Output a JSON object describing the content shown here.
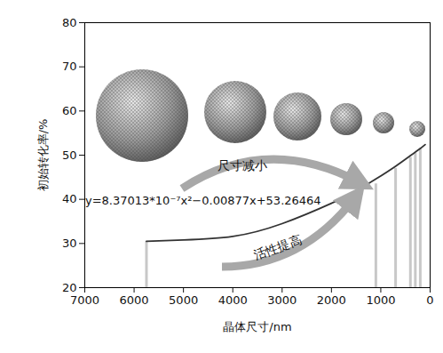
{
  "chart_data": {
    "type": "line",
    "xlabel": "晶体尺寸/nm",
    "ylabel": "初始转化率/%",
    "xlim": [
      7000,
      0
    ],
    "xticks": [
      7000,
      6000,
      5000,
      4000,
      3000,
      2000,
      1000,
      0
    ],
    "ylim": [
      20,
      80
    ],
    "yticks": [
      20,
      30,
      40,
      50,
      60,
      70,
      80
    ],
    "grid": false,
    "series": [
      {
        "type": "line",
        "color": "#333333",
        "x": [
          5750,
          5000,
          4000,
          3000,
          2000,
          1500,
          1100,
          700,
          400,
          300,
          200,
          100
        ],
        "values": [
          30.5,
          30.8,
          31.6,
          34.5,
          39.1,
          41.9,
          44.6,
          47.5,
          49.9,
          50.7,
          51.5,
          52.4
        ]
      },
      {
        "type": "bar",
        "color": "#c8c8c8",
        "x": [
          5750,
          1100,
          700,
          400,
          300,
          200
        ],
        "values": [
          30.5,
          43.5,
          47,
          49.5,
          50.5,
          51.5
        ]
      }
    ],
    "annotations": [
      "y=8.37013*10⁻⁷x²−0.00877x+53.26464",
      "尺寸减小",
      "活性提高"
    ]
  }
}
